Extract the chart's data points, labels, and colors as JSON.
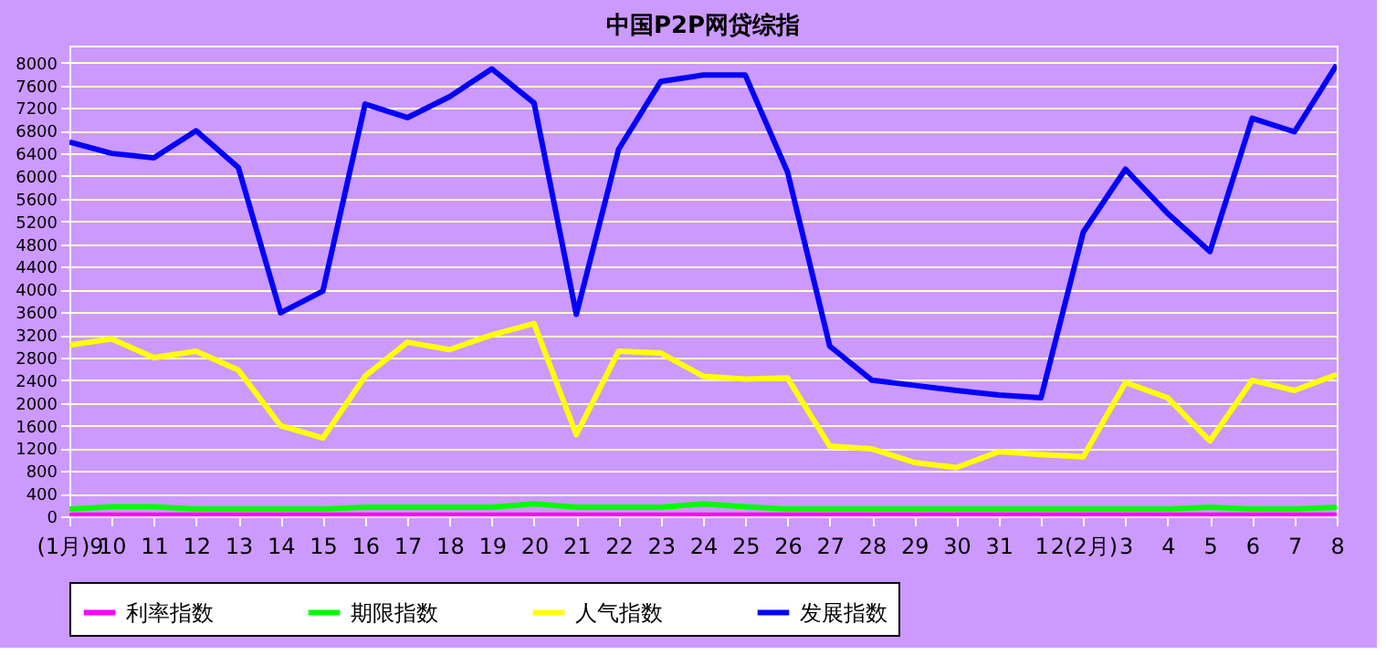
{
  "chart_data": {
    "type": "line",
    "title": "中国P2P网贷综指",
    "categories": [
      "(1月)9",
      "10",
      "11",
      "12",
      "13",
      "14",
      "15",
      "16",
      "17",
      "18",
      "19",
      "20",
      "21",
      "22",
      "23",
      "24",
      "25",
      "26",
      "27",
      "28",
      "29",
      "30",
      "31",
      "1",
      "2(2月)",
      "3",
      "4",
      "5",
      "6",
      "7",
      "8"
    ],
    "series": [
      {
        "name": "利率指数",
        "color": "#ff00ff",
        "values": [
          20,
          20,
          20,
          20,
          20,
          20,
          20,
          20,
          20,
          20,
          20,
          20,
          20,
          20,
          20,
          20,
          20,
          20,
          20,
          20,
          20,
          20,
          20,
          20,
          20,
          20,
          20,
          20,
          20,
          20,
          20
        ]
      },
      {
        "name": "期限指数",
        "color": "#00ff00",
        "values": [
          130,
          170,
          170,
          130,
          130,
          130,
          130,
          160,
          160,
          160,
          160,
          220,
          160,
          160,
          160,
          220,
          170,
          130,
          130,
          130,
          130,
          130,
          130,
          130,
          130,
          130,
          130,
          160,
          130,
          130,
          160
        ]
      },
      {
        "name": "人气指数",
        "color": "#ffff00",
        "values": [
          3020,
          3130,
          2800,
          2910,
          2580,
          1600,
          1380,
          2470,
          3070,
          2940,
          3200,
          3400,
          1440,
          2910,
          2880,
          2470,
          2420,
          2440,
          1240,
          1190,
          950,
          860,
          1140,
          1090,
          1050,
          2360,
          2090,
          1330,
          2400,
          2220,
          2500
        ]
      },
      {
        "name": "发展指数",
        "color": "#0000ff",
        "values": [
          6600,
          6400,
          6320,
          6800,
          6150,
          3590,
          3970,
          7270,
          7030,
          7400,
          7890,
          7290,
          3560,
          6470,
          7670,
          7780,
          7780,
          6070,
          3000,
          2400,
          2310,
          2220,
          2140,
          2090,
          5010,
          6120,
          5340,
          4670,
          7020,
          6780,
          7960
        ]
      }
    ],
    "ylim": [
      0,
      8300
    ],
    "yticks": [
      0,
      400,
      800,
      1200,
      1600,
      2000,
      2400,
      2800,
      3200,
      3600,
      4000,
      4400,
      4800,
      5200,
      5600,
      6000,
      6400,
      6800,
      7200,
      7600,
      8000
    ],
    "grid": "y",
    "legend": "bottom",
    "marker": "none",
    "line_style": "solid"
  }
}
